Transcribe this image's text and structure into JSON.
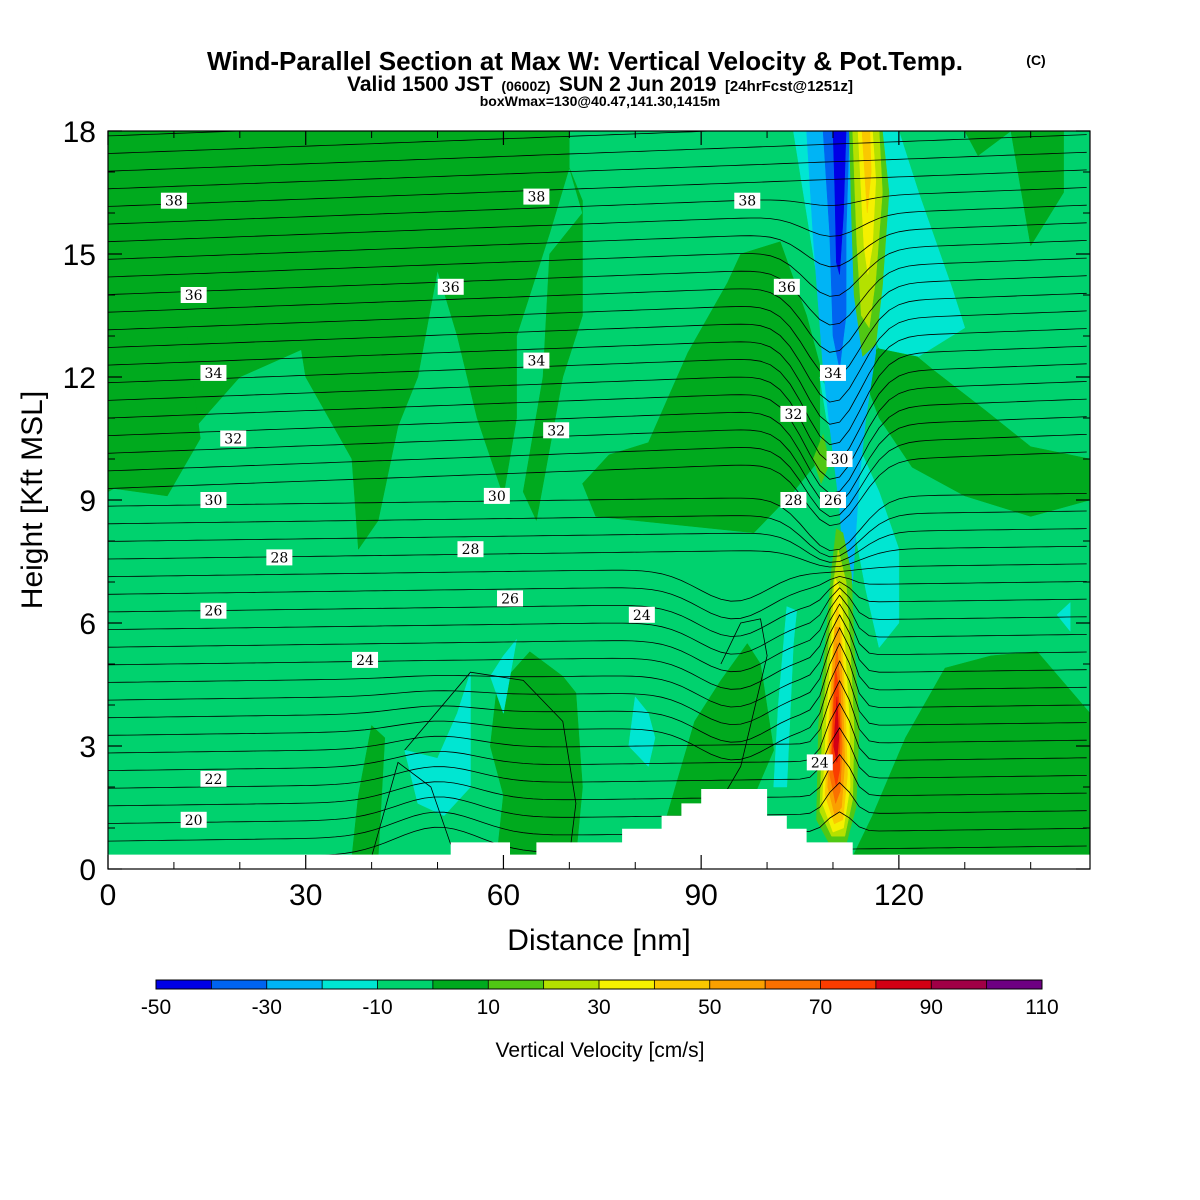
{
  "title": "Wind-Parallel Section at Max W: Vertical Velocity & Pot.Temp.",
  "title_mark": "(C)",
  "subtitle": {
    "pre": "Valid 1500 JST",
    "utc": "(0600Z)",
    "date": "SUN 2 Jun 2019",
    "fcst": "[24hrFcst@1251z]"
  },
  "box_info": "boxWmax=130@40.47,141.30,1415m",
  "colorbar": {
    "label": "Vertical Velocity [cm/s]",
    "tick_labels": [
      "-50",
      "-30",
      "-10",
      "10",
      "30",
      "50",
      "70",
      "90",
      "110"
    ]
  },
  "chart_data": {
    "type": "heatmap",
    "xlabel": "Distance [nm]",
    "ylabel": "Height [Kft MSL]",
    "xlim": [
      0,
      149
    ],
    "ylim": [
      0,
      18
    ],
    "x_ticks": [
      0,
      30,
      60,
      90,
      120
    ],
    "x_tick_labels": [
      "0",
      "30",
      "60",
      "90",
      "120"
    ],
    "y_ticks": [
      0,
      3,
      6,
      9,
      12,
      15,
      18
    ],
    "y_tick_labels": [
      "0",
      "3",
      "6",
      "9",
      "12",
      "15",
      "18"
    ],
    "levels": [
      -50,
      -40,
      -30,
      -20,
      -10,
      0,
      10,
      20,
      30,
      40,
      50,
      60,
      70,
      80,
      90,
      100,
      110
    ],
    "colors": [
      "#0000e6",
      "#0064f0",
      "#00b4f5",
      "#00e6d2",
      "#00d26e",
      "#00aa1e",
      "#50c814",
      "#b4e100",
      "#f5f000",
      "#fac800",
      "#faa000",
      "#fa7000",
      "#fa3c00",
      "#d20014",
      "#a00046",
      "#6e0082"
    ],
    "background_class": "0 to 10 (#00aa1e) in upper levels, -10 to 0 (#00d26e) below",
    "terrain": {
      "x": [
        0,
        52,
        52,
        61,
        61,
        65,
        65,
        78,
        78,
        84,
        84,
        87,
        87,
        90,
        90,
        100,
        100,
        103,
        103,
        106,
        106,
        113,
        113,
        149
      ],
      "height_kft": [
        0.35,
        0.35,
        0.65,
        0.65,
        0.35,
        0.35,
        0.65,
        0.65,
        0.98,
        0.98,
        1.3,
        1.3,
        1.6,
        1.6,
        1.95,
        1.95,
        1.3,
        1.3,
        0.98,
        0.98,
        0.65,
        0.65,
        0.35,
        0.35
      ]
    },
    "features": [
      {
        "label": "updraft core",
        "x": 110.5,
        "height_kft": [
          1,
          8.3
        ],
        "max_cm_s": 90
      },
      {
        "label": "downdraft core",
        "x": 109.5,
        "height_kft": [
          12.2,
          18
        ],
        "min_cm_s": -50
      },
      {
        "label": "upper updraft",
        "x": 115.5,
        "height_kft": [
          13,
          18
        ],
        "max_cm_s": 40
      }
    ],
    "theta_contours": {
      "description": "Potential temperature (labeled contours)",
      "label_values": [
        "38",
        "38",
        "38",
        "36",
        "36",
        "36",
        "34",
        "34",
        "34",
        "32",
        "32",
        "32",
        "30",
        "30",
        "30",
        "28",
        "28",
        "28",
        "26",
        "26",
        "26",
        "24",
        "24",
        "24",
        "22",
        "20"
      ],
      "label_positions": [
        {
          "text": "38",
          "x": 10,
          "height_kft": 16.3
        },
        {
          "text": "38",
          "x": 65,
          "height_kft": 16.4
        },
        {
          "text": "38",
          "x": 97,
          "height_kft": 16.3
        },
        {
          "text": "36",
          "x": 13,
          "height_kft": 14.0
        },
        {
          "text": "36",
          "x": 52,
          "height_kft": 14.2
        },
        {
          "text": "36",
          "x": 103,
          "height_kft": 14.2
        },
        {
          "text": "34",
          "x": 16,
          "height_kft": 12.1
        },
        {
          "text": "34",
          "x": 65,
          "height_kft": 12.4
        },
        {
          "text": "34",
          "x": 110,
          "height_kft": 12.1
        },
        {
          "text": "32",
          "x": 19,
          "height_kft": 10.5
        },
        {
          "text": "32",
          "x": 68,
          "height_kft": 10.7
        },
        {
          "text": "32",
          "x": 104,
          "height_kft": 11.1
        },
        {
          "text": "30",
          "x": 16,
          "height_kft": 9.0
        },
        {
          "text": "30",
          "x": 59,
          "height_kft": 9.1
        },
        {
          "text": "30",
          "x": 111,
          "height_kft": 10.0
        },
        {
          "text": "28",
          "x": 26,
          "height_kft": 7.6
        },
        {
          "text": "28",
          "x": 55,
          "height_kft": 7.8
        },
        {
          "text": "28",
          "x": 104,
          "height_kft": 9.0
        },
        {
          "text": "26",
          "x": 16,
          "height_kft": 6.3
        },
        {
          "text": "26",
          "x": 61,
          "height_kft": 6.6
        },
        {
          "text": "26",
          "x": 110,
          "height_kft": 9.0
        },
        {
          "text": "24",
          "x": 39,
          "height_kft": 5.1
        },
        {
          "text": "24",
          "x": 81,
          "height_kft": 6.2
        },
        {
          "text": "24",
          "x": 108,
          "height_kft": 2.6
        },
        {
          "text": "22",
          "x": 16,
          "height_kft": 2.2
        },
        {
          "text": "20",
          "x": 13,
          "height_kft": 1.2
        }
      ]
    }
  }
}
